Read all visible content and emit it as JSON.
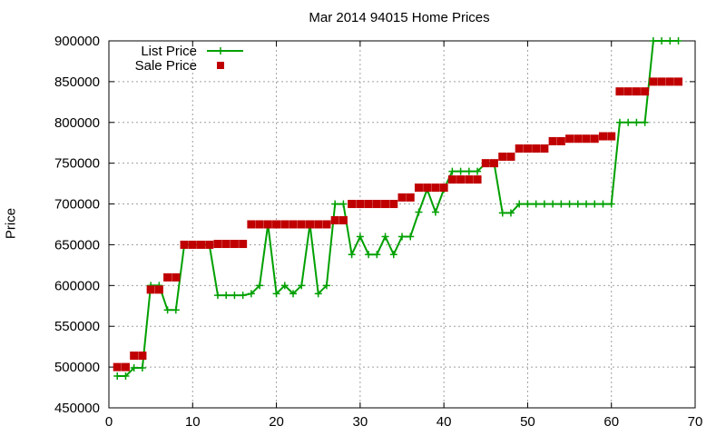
{
  "chart_data": {
    "type": "line",
    "title": "Mar 2014 94015 Home Prices",
    "xlabel": "",
    "ylabel": "Price",
    "xlim": [
      0,
      70
    ],
    "ylim": [
      450000,
      900000
    ],
    "xticks": [
      0,
      10,
      20,
      30,
      40,
      50,
      60,
      70
    ],
    "yticks": [
      450000,
      500000,
      550000,
      600000,
      650000,
      700000,
      750000,
      800000,
      850000,
      900000
    ],
    "grid": true,
    "legend_position": "top-left",
    "series": [
      {
        "name": "List Price",
        "style": "lines+points",
        "marker": "plus",
        "color": "#00a000",
        "x": [
          1,
          2,
          3,
          4,
          5,
          6,
          7,
          8,
          9,
          10,
          11,
          12,
          13,
          14,
          15,
          16,
          17,
          18,
          19,
          20,
          21,
          22,
          23,
          24,
          25,
          26,
          27,
          28,
          29,
          30,
          31,
          32,
          33,
          34,
          35,
          36,
          37,
          38,
          39,
          40,
          41,
          42,
          43,
          44,
          45,
          46,
          47,
          48,
          49,
          50,
          51,
          52,
          53,
          54,
          55,
          56,
          57,
          58,
          59,
          60,
          61,
          62,
          63,
          64,
          65,
          66,
          67,
          68
        ],
        "y": [
          489000,
          489000,
          499000,
          499000,
          600000,
          600000,
          570000,
          570000,
          650000,
          650000,
          650000,
          650000,
          588000,
          588000,
          588000,
          588000,
          590000,
          600000,
          675000,
          590000,
          600000,
          590000,
          600000,
          675000,
          590000,
          600000,
          700000,
          700000,
          638000,
          660000,
          638000,
          638000,
          660000,
          638000,
          660000,
          660000,
          690000,
          718000,
          690000,
          718000,
          740000,
          740000,
          740000,
          740000,
          750000,
          750000,
          689000,
          689000,
          700000,
          700000,
          700000,
          700000,
          700000,
          700000,
          700000,
          700000,
          700000,
          700000,
          700000,
          700000,
          800000,
          800000,
          800000,
          800000,
          900000,
          900000,
          900000,
          900000
        ]
      },
      {
        "name": "Sale Price",
        "style": "points",
        "marker": "square",
        "color": "#c00000",
        "x": [
          1,
          2,
          3,
          4,
          5,
          6,
          7,
          8,
          9,
          10,
          11,
          12,
          13,
          14,
          15,
          16,
          17,
          18,
          19,
          20,
          21,
          22,
          23,
          24,
          25,
          26,
          27,
          28,
          29,
          30,
          31,
          32,
          33,
          34,
          35,
          36,
          37,
          38,
          39,
          40,
          41,
          42,
          43,
          44,
          45,
          46,
          47,
          48,
          49,
          50,
          51,
          52,
          53,
          54,
          55,
          56,
          57,
          58,
          59,
          60,
          61,
          62,
          63,
          64,
          65,
          66,
          67,
          68
        ],
        "y": [
          500000,
          500000,
          514000,
          514000,
          595000,
          595000,
          610000,
          610000,
          650000,
          650000,
          650000,
          650000,
          651000,
          651000,
          651000,
          651000,
          675000,
          675000,
          675000,
          675000,
          675000,
          675000,
          675000,
          675000,
          675000,
          675000,
          680000,
          680000,
          700000,
          700000,
          700000,
          700000,
          700000,
          700000,
          708000,
          708000,
          720000,
          720000,
          720000,
          720000,
          730000,
          730000,
          730000,
          730000,
          750000,
          750000,
          758000,
          758000,
          768000,
          768000,
          768000,
          768000,
          777000,
          777000,
          780000,
          780000,
          780000,
          780000,
          783000,
          783000,
          838000,
          838000,
          838000,
          838000,
          850000,
          850000,
          850000,
          850000
        ]
      }
    ]
  }
}
